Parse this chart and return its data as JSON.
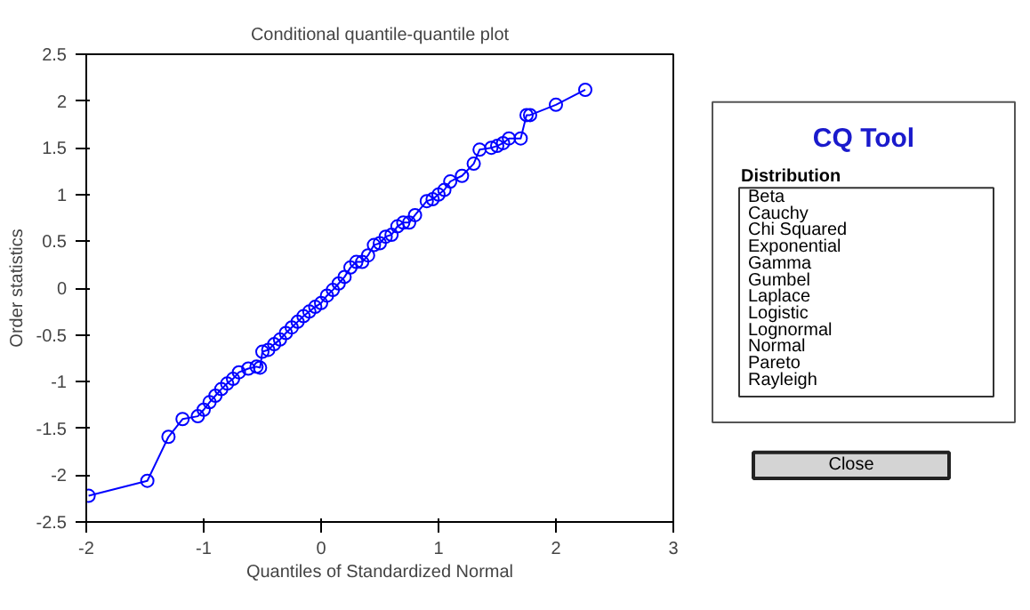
{
  "chart_data": [
    {
      "type": "line",
      "title": "Conditional quantile-quantile plot",
      "xlabel": "Quantiles of Standardized Normal",
      "ylabel": "Order statistics",
      "marker": "circle",
      "line_style": "solid",
      "grid": false,
      "x": [
        -1.98,
        -1.48,
        -1.3,
        -1.18,
        -1.05,
        -1.0,
        -0.95,
        -0.9,
        -0.85,
        -0.8,
        -0.75,
        -0.7,
        -0.62,
        -0.55,
        -0.52,
        -0.5,
        -0.45,
        -0.4,
        -0.35,
        -0.3,
        -0.25,
        -0.2,
        -0.15,
        -0.1,
        -0.05,
        0.0,
        0.05,
        0.1,
        0.15,
        0.2,
        0.25,
        0.3,
        0.35,
        0.4,
        0.45,
        0.5,
        0.55,
        0.6,
        0.65,
        0.7,
        0.75,
        0.8,
        0.9,
        0.95,
        1.0,
        1.05,
        1.1,
        1.2,
        1.3,
        1.35,
        1.45,
        1.5,
        1.55,
        1.6,
        1.7,
        1.75,
        1.78,
        2.0,
        2.25
      ],
      "series": [
        {
          "color": "#0000ff",
          "values": [
            -2.22,
            -2.06,
            -1.59,
            -1.4,
            -1.37,
            -1.3,
            -1.22,
            -1.15,
            -1.08,
            -1.02,
            -0.97,
            -0.9,
            -0.86,
            -0.84,
            -0.85,
            -0.68,
            -0.66,
            -0.6,
            -0.55,
            -0.48,
            -0.42,
            -0.36,
            -0.3,
            -0.25,
            -0.2,
            -0.16,
            -0.08,
            -0.02,
            0.05,
            0.12,
            0.22,
            0.28,
            0.28,
            0.35,
            0.46,
            0.48,
            0.55,
            0.57,
            0.66,
            0.7,
            0.7,
            0.78,
            0.93,
            0.95,
            1.0,
            1.05,
            1.14,
            1.2,
            1.33,
            1.48,
            1.5,
            1.52,
            1.55,
            1.6,
            1.6,
            1.85,
            1.85,
            1.96,
            2.12
          ]
        }
      ],
      "xlim": [
        -2,
        3
      ],
      "ylim": [
        -2.5,
        2.5
      ],
      "xticks": [
        -2,
        -1,
        0,
        1,
        2,
        3
      ],
      "yticks": [
        -2.5,
        -2,
        -1.5,
        -1,
        -0.5,
        0,
        0.5,
        1,
        1.5,
        2,
        2.5
      ]
    },
    {
      "type": "other",
      "title": "CQ Tool",
      "subtitle": "Distribution",
      "annotations": [
        "Beta",
        "Cauchy",
        "Chi Squared",
        "Exponential",
        "Gamma",
        "Gumbel",
        "Laplace",
        "Logistic",
        "Lognormal",
        "Normal",
        "Pareto",
        "Rayleigh",
        "Close"
      ]
    }
  ]
}
